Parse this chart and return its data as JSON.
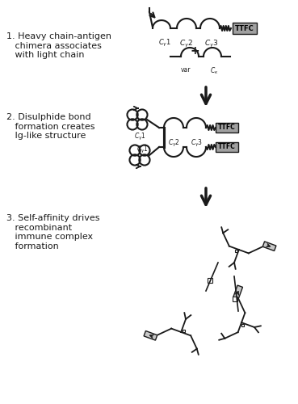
{
  "bg_color": "#ffffff",
  "line_color": "#1a1a1a",
  "gray_fill": "#a0a0a0",
  "light_gray": "#c8c8c8",
  "title": "",
  "label1": "1. Heavy chain-antigen\n   chimera associates\n   with light chain",
  "label2": "2. Disulphide bond\n   formation creates\n   Ig-like structure",
  "label3": "3. Self-affinity drives\n   recombinant\n   immune complex\n   formation",
  "fig_width": 3.69,
  "fig_height": 5.0,
  "dpi": 100
}
